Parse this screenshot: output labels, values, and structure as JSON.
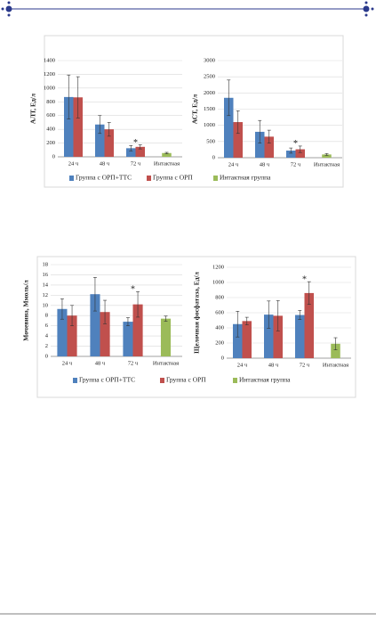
{
  "chart_data": [
    {
      "type": "bar",
      "ylabel": "АЛТ, Ед/л",
      "categories": [
        "24 ч",
        "48 ч",
        "72 ч",
        "Интактная"
      ],
      "series": [
        {
          "name": "Группа с ОРП+ТТС",
          "color": "#4f81bd",
          "values": [
            870,
            470,
            125,
            null
          ],
          "errors": [
            320,
            130,
            40,
            null
          ]
        },
        {
          "name": "Группа с ОРП",
          "color": "#c0504d",
          "values": [
            865,
            400,
            145,
            null
          ],
          "errors": [
            300,
            100,
            30,
            null
          ]
        },
        {
          "name": "Интактная группа",
          "color": "#9bbb59",
          "values": [
            null,
            null,
            null,
            55
          ],
          "errors": [
            null,
            null,
            null,
            10
          ]
        }
      ],
      "ylim": [
        0,
        1400
      ],
      "yticks": [
        0,
        200,
        400,
        600,
        800,
        1000,
        1200,
        1400
      ],
      "grid": true,
      "annotations": [
        {
          "text": "*",
          "x": "72 ч"
        }
      ]
    },
    {
      "type": "bar",
      "ylabel": "АСТ, Ед/л",
      "categories": [
        "24 ч",
        "48 ч",
        "72 ч",
        "Интактная"
      ],
      "series": [
        {
          "color": "#4f81bd",
          "values": [
            1850,
            800,
            220,
            null
          ],
          "errors": [
            550,
            350,
            80,
            null
          ]
        },
        {
          "color": "#c0504d",
          "values": [
            1100,
            650,
            260,
            null
          ],
          "errors": [
            350,
            200,
            100,
            null
          ]
        },
        {
          "color": "#9bbb59",
          "values": [
            null,
            null,
            null,
            100
          ],
          "errors": [
            null,
            null,
            null,
            30
          ]
        }
      ],
      "ylim": [
        0,
        3000
      ],
      "yticks": [
        0,
        500,
        1000,
        1500,
        2000,
        2500,
        3000
      ],
      "grid": true,
      "annotations": [
        {
          "text": "*",
          "x": "72 ч"
        }
      ]
    },
    {
      "type": "bar",
      "ylabel": "Мочевина, Ммоль/л",
      "categories": [
        "24 ч",
        "48 ч",
        "72 ч",
        "Интактная"
      ],
      "series": [
        {
          "name": "Группа с ОРП+ТТС",
          "color": "#4f81bd",
          "values": [
            9.3,
            12.2,
            6.8,
            null
          ],
          "errors": [
            2,
            3.3,
            0.8,
            null
          ]
        },
        {
          "name": "Группа с ОРП",
          "color": "#c0504d",
          "values": [
            8.0,
            8.7,
            10.2,
            null
          ],
          "errors": [
            2,
            2.3,
            2.5,
            null
          ]
        },
        {
          "name": "Интактная группа",
          "color": "#9bbb59",
          "values": [
            null,
            null,
            null,
            7.4
          ],
          "errors": [
            null,
            null,
            null,
            0.5
          ]
        }
      ],
      "ylim": [
        0,
        18
      ],
      "yticks": [
        0,
        2,
        4,
        6,
        8,
        10,
        12,
        14,
        16,
        18
      ],
      "grid": true,
      "annotations": [
        {
          "text": "*",
          "x": "72 ч"
        }
      ]
    },
    {
      "type": "bar",
      "ylabel": "Щелочная фосфатаза, Ед/л",
      "categories": [
        "24 ч",
        "48 ч",
        "72 ч",
        "Интактная"
      ],
      "series": [
        {
          "color": "#4f81bd",
          "values": [
            450,
            575,
            570,
            null
          ],
          "errors": [
            170,
            180,
            60,
            null
          ]
        },
        {
          "color": "#c0504d",
          "values": [
            490,
            560,
            860,
            null
          ],
          "errors": [
            50,
            200,
            150,
            null
          ]
        },
        {
          "color": "#9bbb59",
          "values": [
            null,
            null,
            null,
            190
          ],
          "errors": [
            null,
            null,
            null,
            80
          ]
        }
      ],
      "ylim": [
        0,
        1200
      ],
      "yticks": [
        0,
        200,
        400,
        600,
        800,
        1000,
        1200
      ],
      "grid": true,
      "annotations": [
        {
          "text": "*",
          "x": "72 ч"
        }
      ]
    }
  ]
}
